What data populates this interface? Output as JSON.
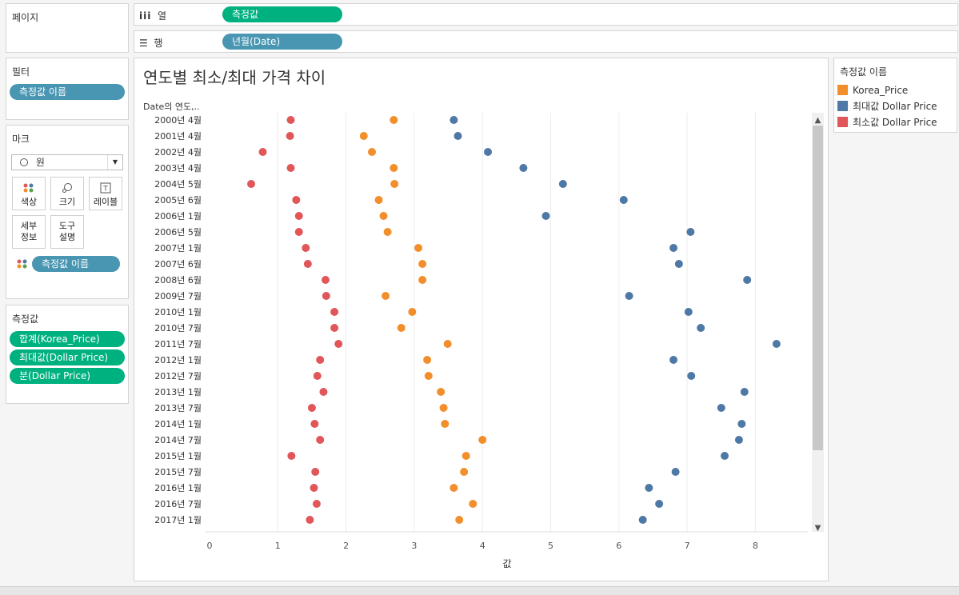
{
  "shelves": {
    "pages_label": "페이지",
    "columns_label": "열",
    "columns_pill": "측정값",
    "rows_label": "행",
    "rows_pill": "년월(Date)"
  },
  "filters": {
    "title": "필터",
    "pill": "측정값 이름"
  },
  "marks": {
    "title": "마크",
    "type_value": "원",
    "buttons": {
      "color": "색상",
      "size": "크기",
      "label": "레이블",
      "detail": "세부\n정보",
      "tooltip": "도구\n설명"
    },
    "color_pill": "측정값 이름"
  },
  "measure_values": {
    "title": "측정값",
    "pills": [
      "합계(Korea_Price)",
      "최대값(Dollar Price)",
      "분(Dollar Price)"
    ]
  },
  "legend": {
    "title": "측정값 이름",
    "items": [
      {
        "label": "Korea_Price",
        "color": "#f28e2b"
      },
      {
        "label": "최대값 Dollar Price",
        "color": "#4e79a7"
      },
      {
        "label": "최소값 Dollar Price",
        "color": "#e15759"
      }
    ]
  },
  "chart_data": {
    "type": "scatter",
    "title": "연도별 최소/최대 가격 차이",
    "row_header": "Date의 연도,..",
    "xlabel": "값",
    "xlim": [
      0,
      8.8
    ],
    "xticks": [
      0,
      1,
      2,
      3,
      4,
      5,
      6,
      7,
      8
    ],
    "categories": [
      "2000년 4월",
      "2001년 4월",
      "2002년 4월",
      "2003년 4월",
      "2004년 5월",
      "2005년 6월",
      "2006년 1월",
      "2006년 5월",
      "2007년 1월",
      "2007년 6월",
      "2008년 6월",
      "2009년 7월",
      "2010년 1월",
      "2010년 7월",
      "2011년 7월",
      "2012년 1월",
      "2012년 7월",
      "2013년 1월",
      "2013년 7월",
      "2014년 1월",
      "2014년 7월",
      "2015년 1월",
      "2015년 7월",
      "2016년 1월",
      "2016년 7월",
      "2017년 1월"
    ],
    "series": [
      {
        "name": "Korea_Price",
        "color": "#f28e2b",
        "values": [
          2.7,
          2.26,
          2.38,
          2.7,
          2.71,
          2.48,
          2.55,
          2.61,
          3.06,
          3.12,
          3.12,
          2.58,
          2.97,
          2.81,
          3.49,
          3.19,
          3.21,
          3.39,
          3.43,
          3.45,
          4.0,
          3.76,
          3.73,
          3.58,
          3.86,
          3.66
        ]
      },
      {
        "name": "최대값 Dollar Price",
        "color": "#4e79a7",
        "values": [
          3.58,
          3.64,
          4.08,
          4.6,
          5.18,
          6.07,
          4.93,
          7.05,
          6.8,
          6.88,
          7.88,
          6.15,
          7.02,
          7.2,
          8.31,
          6.8,
          7.06,
          7.84,
          7.5,
          7.8,
          7.76,
          7.55,
          6.83,
          6.44,
          6.59,
          6.35
        ]
      },
      {
        "name": "최소값 Dollar Price",
        "color": "#e15759",
        "values": [
          1.19,
          1.18,
          0.78,
          1.19,
          0.61,
          1.27,
          1.31,
          1.31,
          1.41,
          1.44,
          1.7,
          1.71,
          1.83,
          1.83,
          1.89,
          1.62,
          1.58,
          1.67,
          1.5,
          1.54,
          1.62,
          1.2,
          1.55,
          1.53,
          1.57,
          1.47
        ]
      }
    ]
  }
}
